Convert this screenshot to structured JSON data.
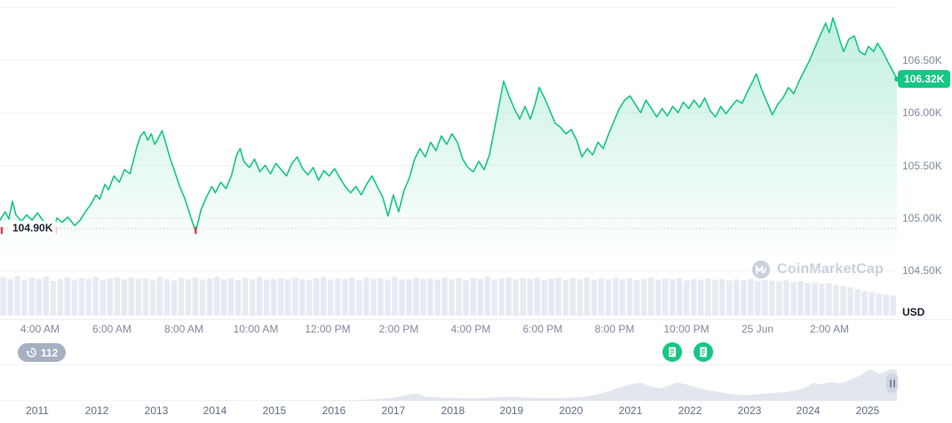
{
  "y_axis": {
    "unit": "USD"
  },
  "current_price": {
    "label": "106.32K",
    "value": 106.32
  },
  "low_line": {
    "label": "104.90K",
    "value": 104.9
  },
  "x_axis": {
    "labels": [
      "4:00 AM",
      "6:00 AM",
      "8:00 AM",
      "10:00 AM",
      "12:00 PM",
      "2:00 PM",
      "4:00 PM",
      "6:00 PM",
      "8:00 PM",
      "10:00 PM",
      "25 Jun",
      "2:00 AM"
    ]
  },
  "history_badge": {
    "count": "112"
  },
  "event_markers": [
    {
      "x": 757,
      "icon": "news-icon"
    },
    {
      "x": 792,
      "icon": "news-icon"
    }
  ],
  "watermark": {
    "text": "CoinMarketCap"
  },
  "colors": {
    "accent_green": "#16c784",
    "down_red": "#ea3943",
    "axis_text": "#808a9d",
    "grid": "#f0f2f6",
    "volume": "#e7ebf1",
    "brush_fill": "#e2e7ee",
    "badge_gray": "#a6b0c3",
    "watermark": "#c9d1df"
  },
  "chart_data": [
    {
      "name": "price",
      "type": "line",
      "ylabel": "USD",
      "x_domain": [
        0,
        1008
      ],
      "ylim": [
        104.04,
        107.07
      ],
      "grid_values": [
        107.0,
        106.5,
        106.0,
        105.5,
        105.0,
        104.5
      ],
      "y_ticks": [
        {
          "v": 106.5,
          "label": "106.50K"
        },
        {
          "v": 106.0,
          "label": "106.00K"
        },
        {
          "v": 105.5,
          "label": "105.50K"
        },
        {
          "v": 105.0,
          "label": "105.00K"
        },
        {
          "v": 104.5,
          "label": "104.50K"
        }
      ],
      "x_tick_pos": [
        0.045,
        0.125,
        0.205,
        0.285,
        0.365,
        0.445,
        0.525,
        0.605,
        0.685,
        0.765,
        0.845,
        0.925
      ],
      "low_markers_x": [
        2,
        62,
        220
      ],
      "points": [
        [
          0,
          104.98
        ],
        [
          6,
          105.06
        ],
        [
          10,
          104.99
        ],
        [
          14,
          105.16
        ],
        [
          18,
          105.03
        ],
        [
          24,
          104.97
        ],
        [
          30,
          105.03
        ],
        [
          36,
          104.98
        ],
        [
          42,
          105.05
        ],
        [
          48,
          104.98
        ],
        [
          54,
          104.94
        ],
        [
          60,
          104.9
        ],
        [
          64,
          105.0
        ],
        [
          70,
          104.96
        ],
        [
          76,
          105.01
        ],
        [
          84,
          104.93
        ],
        [
          90,
          104.98
        ],
        [
          96,
          105.06
        ],
        [
          102,
          105.13
        ],
        [
          108,
          105.22
        ],
        [
          112,
          105.18
        ],
        [
          118,
          105.32
        ],
        [
          122,
          105.27
        ],
        [
          128,
          105.4
        ],
        [
          134,
          105.34
        ],
        [
          140,
          105.46
        ],
        [
          146,
          105.42
        ],
        [
          150,
          105.55
        ],
        [
          154,
          105.68
        ],
        [
          158,
          105.78
        ],
        [
          162,
          105.82
        ],
        [
          166,
          105.74
        ],
        [
          170,
          105.8
        ],
        [
          174,
          105.7
        ],
        [
          178,
          105.76
        ],
        [
          182,
          105.83
        ],
        [
          186,
          105.72
        ],
        [
          190,
          105.6
        ],
        [
          196,
          105.45
        ],
        [
          202,
          105.3
        ],
        [
          208,
          105.18
        ],
        [
          214,
          105.02
        ],
        [
          220,
          104.87
        ],
        [
          226,
          105.08
        ],
        [
          232,
          105.2
        ],
        [
          238,
          105.3
        ],
        [
          242,
          105.24
        ],
        [
          248,
          105.34
        ],
        [
          254,
          105.28
        ],
        [
          260,
          105.4
        ],
        [
          266,
          105.6
        ],
        [
          270,
          105.66
        ],
        [
          274,
          105.54
        ],
        [
          280,
          105.48
        ],
        [
          286,
          105.56
        ],
        [
          292,
          105.44
        ],
        [
          298,
          105.5
        ],
        [
          304,
          105.42
        ],
        [
          310,
          105.52
        ],
        [
          316,
          105.46
        ],
        [
          322,
          105.4
        ],
        [
          328,
          105.52
        ],
        [
          334,
          105.58
        ],
        [
          340,
          105.47
        ],
        [
          346,
          105.41
        ],
        [
          352,
          105.48
        ],
        [
          358,
          105.36
        ],
        [
          364,
          105.45
        ],
        [
          370,
          105.4
        ],
        [
          376,
          105.47
        ],
        [
          382,
          105.38
        ],
        [
          388,
          105.3
        ],
        [
          394,
          105.24
        ],
        [
          400,
          105.3
        ],
        [
          406,
          105.22
        ],
        [
          412,
          105.32
        ],
        [
          418,
          105.4
        ],
        [
          424,
          105.3
        ],
        [
          430,
          105.2
        ],
        [
          436,
          105.02
        ],
        [
          442,
          105.22
        ],
        [
          448,
          105.06
        ],
        [
          454,
          105.26
        ],
        [
          460,
          105.38
        ],
        [
          466,
          105.56
        ],
        [
          472,
          105.66
        ],
        [
          478,
          105.58
        ],
        [
          484,
          105.72
        ],
        [
          490,
          105.64
        ],
        [
          496,
          105.78
        ],
        [
          502,
          105.7
        ],
        [
          508,
          105.8
        ],
        [
          514,
          105.72
        ],
        [
          520,
          105.56
        ],
        [
          526,
          105.48
        ],
        [
          532,
          105.44
        ],
        [
          538,
          105.54
        ],
        [
          544,
          105.46
        ],
        [
          550,
          105.6
        ],
        [
          556,
          105.86
        ],
        [
          562,
          106.12
        ],
        [
          566,
          106.3
        ],
        [
          572,
          106.16
        ],
        [
          578,
          106.04
        ],
        [
          584,
          105.94
        ],
        [
          590,
          106.06
        ],
        [
          596,
          105.94
        ],
        [
          602,
          106.1
        ],
        [
          606,
          106.24
        ],
        [
          612,
          106.14
        ],
        [
          618,
          106.02
        ],
        [
          624,
          105.9
        ],
        [
          630,
          105.86
        ],
        [
          636,
          105.8
        ],
        [
          642,
          105.84
        ],
        [
          648,
          105.74
        ],
        [
          654,
          105.58
        ],
        [
          660,
          105.66
        ],
        [
          666,
          105.6
        ],
        [
          672,
          105.72
        ],
        [
          678,
          105.66
        ],
        [
          684,
          105.8
        ],
        [
          690,
          105.92
        ],
        [
          696,
          106.04
        ],
        [
          702,
          106.12
        ],
        [
          708,
          106.16
        ],
        [
          714,
          106.08
        ],
        [
          720,
          106.0
        ],
        [
          726,
          106.12
        ],
        [
          732,
          106.04
        ],
        [
          738,
          105.96
        ],
        [
          744,
          106.04
        ],
        [
          750,
          105.97
        ],
        [
          756,
          106.06
        ],
        [
          762,
          106.0
        ],
        [
          768,
          106.1
        ],
        [
          774,
          106.04
        ],
        [
          780,
          106.12
        ],
        [
          786,
          106.05
        ],
        [
          792,
          106.14
        ],
        [
          798,
          106.02
        ],
        [
          804,
          105.96
        ],
        [
          810,
          106.06
        ],
        [
          816,
          105.99
        ],
        [
          822,
          106.06
        ],
        [
          828,
          106.12
        ],
        [
          834,
          106.09
        ],
        [
          840,
          106.2
        ],
        [
          846,
          106.3
        ],
        [
          850,
          106.37
        ],
        [
          856,
          106.22
        ],
        [
          862,
          106.1
        ],
        [
          868,
          105.98
        ],
        [
          874,
          106.08
        ],
        [
          880,
          106.14
        ],
        [
          886,
          106.24
        ],
        [
          892,
          106.18
        ],
        [
          898,
          106.3
        ],
        [
          904,
          106.4
        ],
        [
          910,
          106.5
        ],
        [
          916,
          106.62
        ],
        [
          922,
          106.74
        ],
        [
          928,
          106.85
        ],
        [
          932,
          106.76
        ],
        [
          936,
          106.9
        ],
        [
          940,
          106.8
        ],
        [
          944,
          106.68
        ],
        [
          948,
          106.58
        ],
        [
          954,
          106.7
        ],
        [
          960,
          106.73
        ],
        [
          966,
          106.58
        ],
        [
          972,
          106.55
        ],
        [
          976,
          106.63
        ],
        [
          982,
          106.58
        ],
        [
          986,
          106.66
        ],
        [
          992,
          106.58
        ],
        [
          998,
          106.48
        ],
        [
          1003,
          106.4
        ],
        [
          1008,
          106.32
        ]
      ]
    },
    {
      "name": "volume",
      "type": "bar",
      "values": [
        0.95,
        0.9,
        0.97,
        0.88,
        0.93,
        0.9,
        0.96,
        0.85,
        0.9,
        0.94,
        0.88,
        0.92,
        0.9,
        0.95,
        0.87,
        0.91,
        0.94,
        0.89,
        0.93,
        0.9,
        0.92,
        0.88,
        0.95,
        0.9,
        0.86,
        0.93,
        0.9,
        0.94,
        0.88,
        0.91,
        0.95,
        0.89,
        0.92,
        0.87,
        0.93,
        0.9,
        0.95,
        0.88,
        0.9,
        0.93,
        0.89,
        0.94,
        0.9,
        0.87,
        0.92,
        0.95,
        0.88,
        0.91,
        0.9,
        0.93,
        0.87,
        0.94,
        0.9,
        0.92,
        0.88,
        0.95,
        0.9,
        0.89,
        0.93,
        0.9,
        0.91,
        0.88,
        0.94,
        0.9,
        0.92,
        0.87,
        0.93,
        0.9,
        0.95,
        0.88,
        0.91,
        0.93,
        0.89,
        0.92,
        0.9,
        0.94,
        0.87,
        0.91,
        0.93,
        0.88,
        0.92,
        0.9,
        0.94,
        0.88,
        0.91,
        0.89,
        0.93,
        0.9,
        0.92,
        0.87,
        0.9,
        0.93,
        0.88,
        0.91,
        0.9,
        0.92,
        0.86,
        0.9,
        0.88,
        0.91,
        0.88,
        0.9,
        0.86,
        0.89,
        0.87,
        0.9,
        0.85,
        0.88,
        0.86,
        0.84,
        0.87,
        0.83,
        0.85,
        0.8,
        0.82,
        0.78,
        0.8,
        0.75,
        0.72,
        0.7,
        0.65,
        0.6,
        0.58,
        0.55,
        0.52,
        0.5
      ]
    },
    {
      "name": "all-time-overview",
      "type": "area",
      "years": [
        "2011",
        "2012",
        "2013",
        "2014",
        "2015",
        "2016",
        "2017",
        "2018",
        "2019",
        "2020",
        "2021",
        "2022",
        "2023",
        "2024",
        "2025"
      ],
      "points": [
        [
          0,
          0.012
        ],
        [
          0.04,
          0.012
        ],
        [
          0.08,
          0.013
        ],
        [
          0.12,
          0.012
        ],
        [
          0.16,
          0.014
        ],
        [
          0.2,
          0.013
        ],
        [
          0.24,
          0.016
        ],
        [
          0.28,
          0.014
        ],
        [
          0.32,
          0.016
        ],
        [
          0.36,
          0.02
        ],
        [
          0.4,
          0.025
        ],
        [
          0.42,
          0.05
        ],
        [
          0.44,
          0.1
        ],
        [
          0.455,
          0.18
        ],
        [
          0.465,
          0.22
        ],
        [
          0.475,
          0.13
        ],
        [
          0.49,
          0.1
        ],
        [
          0.51,
          0.08
        ],
        [
          0.53,
          0.07
        ],
        [
          0.55,
          0.1
        ],
        [
          0.57,
          0.13
        ],
        [
          0.59,
          0.09
        ],
        [
          0.61,
          0.08
        ],
        [
          0.63,
          0.09
        ],
        [
          0.65,
          0.12
        ],
        [
          0.67,
          0.22
        ],
        [
          0.69,
          0.4
        ],
        [
          0.705,
          0.52
        ],
        [
          0.715,
          0.55
        ],
        [
          0.725,
          0.44
        ],
        [
          0.735,
          0.38
        ],
        [
          0.745,
          0.46
        ],
        [
          0.755,
          0.56
        ],
        [
          0.765,
          0.5
        ],
        [
          0.775,
          0.42
        ],
        [
          0.785,
          0.34
        ],
        [
          0.8,
          0.28
        ],
        [
          0.815,
          0.21
        ],
        [
          0.83,
          0.17
        ],
        [
          0.845,
          0.2
        ],
        [
          0.86,
          0.24
        ],
        [
          0.875,
          0.27
        ],
        [
          0.89,
          0.33
        ],
        [
          0.9,
          0.44
        ],
        [
          0.907,
          0.56
        ],
        [
          0.913,
          0.5
        ],
        [
          0.92,
          0.54
        ],
        [
          0.928,
          0.57
        ],
        [
          0.935,
          0.53
        ],
        [
          0.942,
          0.58
        ],
        [
          0.95,
          0.66
        ],
        [
          0.958,
          0.76
        ],
        [
          0.965,
          0.88
        ],
        [
          0.97,
          0.97
        ],
        [
          0.975,
          0.9
        ],
        [
          0.98,
          0.82
        ],
        [
          0.985,
          0.86
        ],
        [
          0.99,
          0.93
        ],
        [
          0.995,
          0.97
        ],
        [
          1,
          0.94
        ]
      ]
    }
  ]
}
